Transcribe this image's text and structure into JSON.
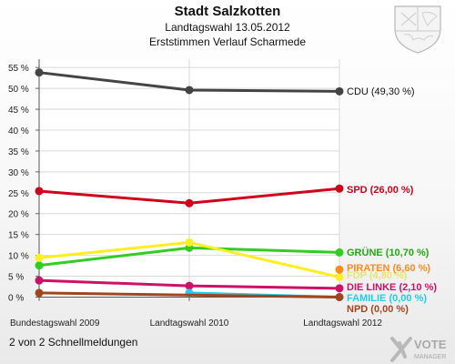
{
  "header": {
    "title": "Stadt Salzkotten",
    "subtitle": "Landtagswahl 13.05.2012",
    "subtitle2": "Erststimmen Verlauf Scharmede"
  },
  "footer": {
    "text": "2 von 2 Schnellmeldungen"
  },
  "logo": {
    "name": "vote-manager-logo",
    "text1": "VOTE",
    "text2": "MANAGER"
  },
  "crest": {
    "name": "nrw-crest-icon"
  },
  "chart_data": {
    "type": "line",
    "categories": [
      "Bundestagswahl 2009",
      "Landtagswahl 2010",
      "Landtagswahl 2012"
    ],
    "ylim": [
      0,
      57
    ],
    "yticks": [
      0,
      5,
      10,
      15,
      20,
      25,
      30,
      35,
      40,
      45,
      50,
      55
    ],
    "ytick_labels": [
      "0 %",
      "5 %",
      "10 %",
      "15 %",
      "20 %",
      "25 %",
      "30 %",
      "35 %",
      "40 %",
      "45 %",
      "50 %",
      "55 %"
    ],
    "grid": true,
    "series": [
      {
        "name": "CDU",
        "values": [
          53.8,
          49.6,
          49.3
        ],
        "label": "CDU (49,30 %)",
        "color": "#444444",
        "label_color": "#111111"
      },
      {
        "name": "SPD",
        "values": [
          25.4,
          22.5,
          26.0
        ],
        "label": "SPD (26,00 %)",
        "color": "#d0021b",
        "label_color": "#d0021b"
      },
      {
        "name": "GRÜNE",
        "values": [
          7.6,
          11.8,
          10.7
        ],
        "label": "GRÜNE (10,70 %)",
        "color": "#33cc22",
        "label_color": "#22aa11"
      },
      {
        "name": "FDP",
        "values": [
          9.4,
          13.1,
          4.8
        ],
        "label": "FDP (4,80 %)",
        "color": "#ffee22",
        "label_color": "#e8d800"
      },
      {
        "name": "PIRATEN",
        "values": [
          null,
          null,
          6.6
        ],
        "label": "PIRATEN (6,60 %)",
        "color": "#ff8c1a",
        "label_color": "#ff8c1a"
      },
      {
        "name": "DIE LINKE",
        "values": [
          4.0,
          2.7,
          2.1
        ],
        "label": "DIE LINKE (2,10 %)",
        "color": "#cc1166",
        "label_color": "#cc1166"
      },
      {
        "name": "FAMILIE",
        "values": [
          null,
          1.0,
          0.0
        ],
        "label": "FAMILIE (0,00 %)",
        "color": "#22ccee",
        "label_color": "#22ccee"
      },
      {
        "name": "NPD",
        "values": [
          1.0,
          null,
          0.0
        ],
        "label": "NPD (0,00 %)",
        "color": "#a0461e",
        "label_color": "#a0461e"
      }
    ]
  }
}
